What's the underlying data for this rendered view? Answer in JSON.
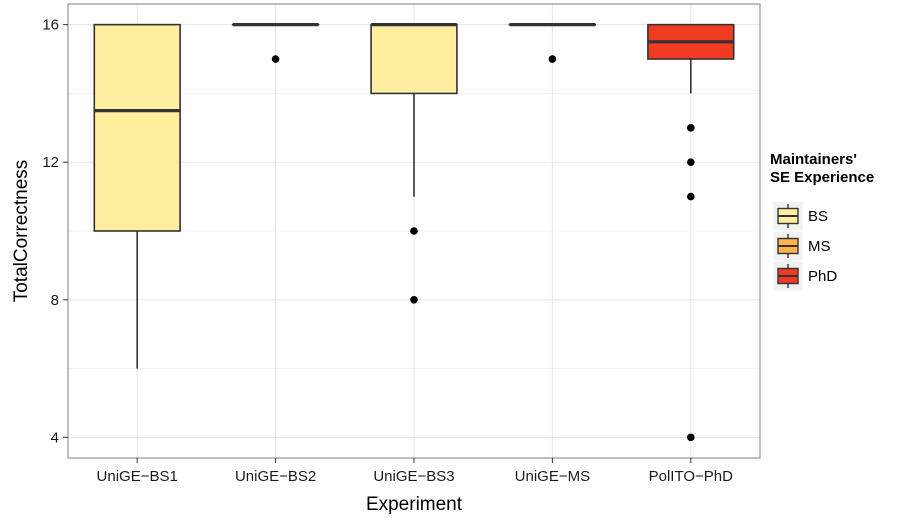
{
  "chart_data": {
    "type": "boxplot",
    "xlabel": "Experiment",
    "ylabel": "TotalCorrectness",
    "ylim": [
      3.4,
      16.6
    ],
    "yticks": [
      4,
      8,
      12,
      16
    ],
    "grid": true,
    "legend": {
      "title_lines": [
        "Maintainers'",
        "SE Experience"
      ],
      "placement": "right",
      "entries": [
        {
          "label": "BS",
          "color": "#FFEDA0"
        },
        {
          "label": "MS",
          "color": "#FEB24C"
        },
        {
          "label": "PhD",
          "color": "#F03B20"
        }
      ]
    },
    "categories": [
      "UniGE−BS1",
      "UniGE−BS2",
      "UniGE−BS3",
      "UniGE−MS",
      "PolITO−PhD"
    ],
    "boxes": [
      {
        "category": "UniGE−BS1",
        "group": "BS",
        "q1": 10,
        "median": 13.5,
        "q3": 16,
        "whisker_low": 6,
        "whisker_high": 16,
        "outliers": []
      },
      {
        "category": "UniGE−BS2",
        "group": "BS",
        "q1": 16,
        "median": 16,
        "q3": 16,
        "whisker_low": 16,
        "whisker_high": 16,
        "outliers": [
          15
        ]
      },
      {
        "category": "UniGE−BS3",
        "group": "BS",
        "q1": 14,
        "median": 16,
        "q3": 16,
        "whisker_low": 11,
        "whisker_high": 16,
        "outliers": [
          10,
          8
        ]
      },
      {
        "category": "UniGE−MS",
        "group": "MS",
        "q1": 16,
        "median": 16,
        "q3": 16,
        "whisker_low": 16,
        "whisker_high": 16,
        "outliers": [
          15
        ]
      },
      {
        "category": "PolITO−PhD",
        "group": "PhD",
        "q1": 15,
        "median": 15.5,
        "q3": 16,
        "whisker_low": 14,
        "whisker_high": 16,
        "outliers": [
          13,
          12,
          11,
          4
        ]
      }
    ]
  },
  "colors": {
    "panel_border": "#7f7f7f",
    "grid_major": "#e6e6e6",
    "grid_minor": "#f3f3f3",
    "box_stroke": "#333333",
    "outlier": "#000000"
  }
}
